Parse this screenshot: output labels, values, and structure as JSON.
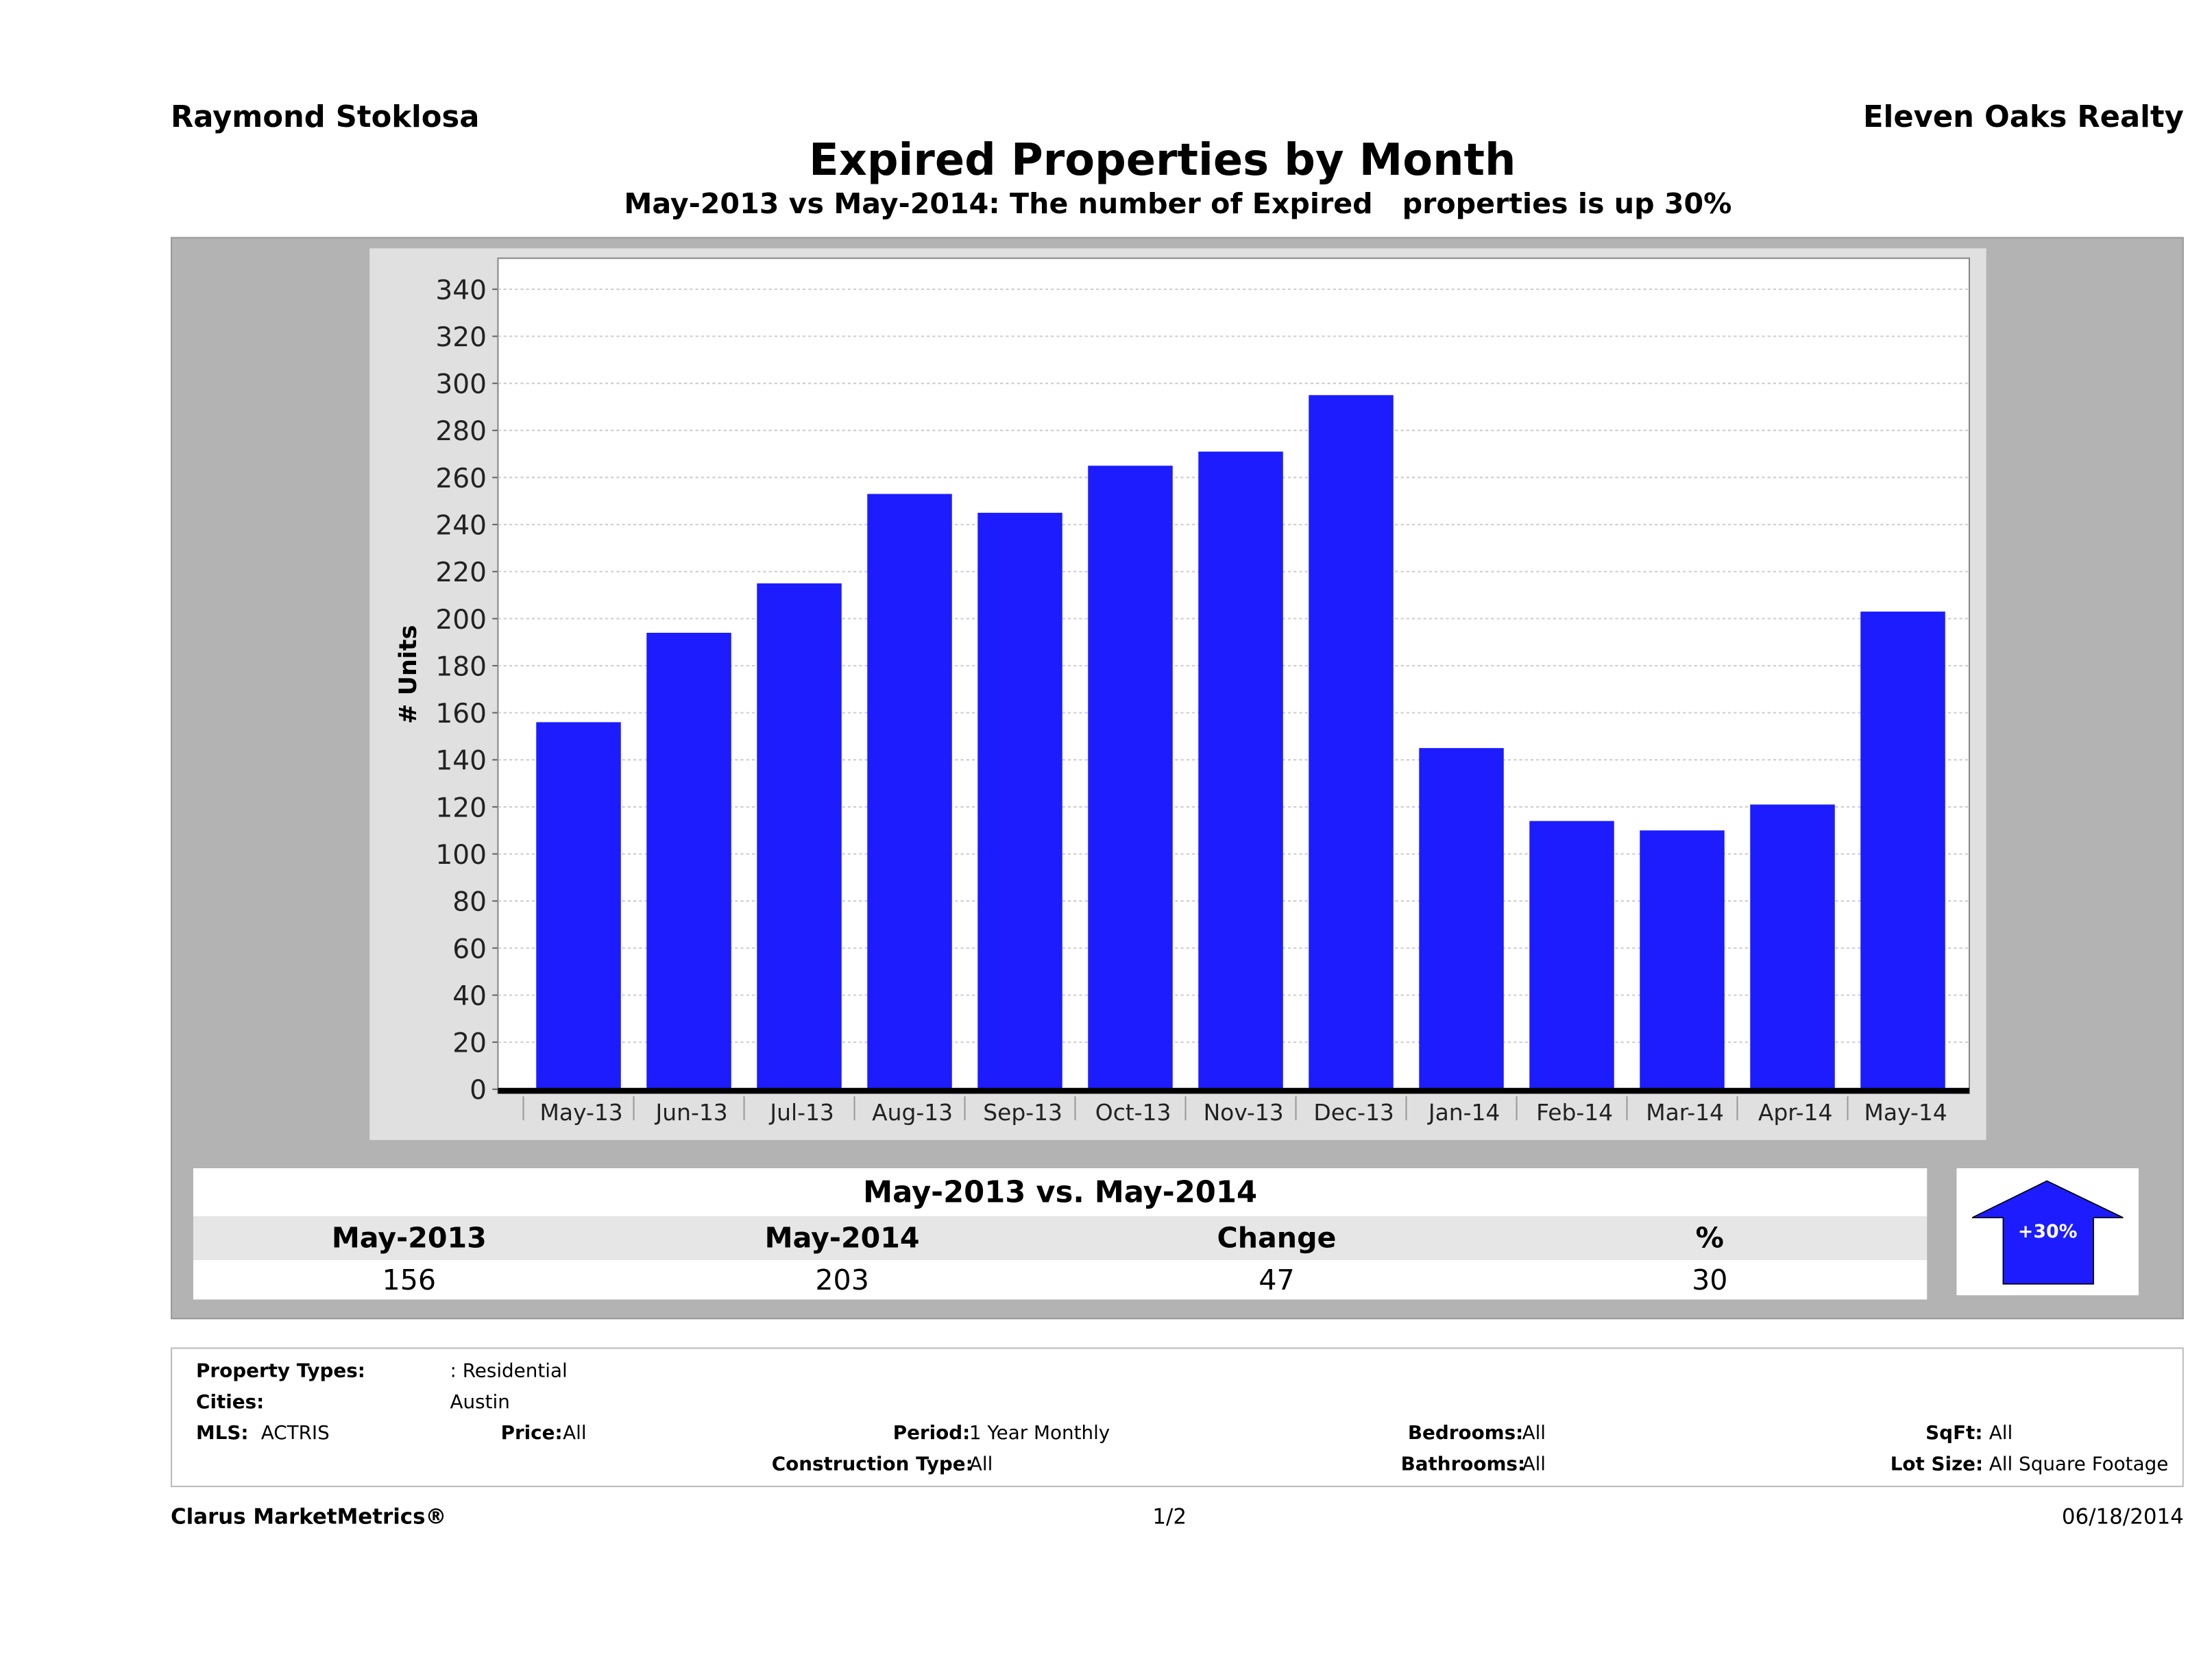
{
  "header": {
    "agent": "Raymond Stoklosa",
    "company": "Eleven Oaks Realty",
    "title": "Expired Properties by Month",
    "subtitle": "May-2013 vs May-2014: The number of Expired   properties is up 30%"
  },
  "chart_data": {
    "type": "bar",
    "categories": [
      "May-13",
      "Jun-13",
      "Jul-13",
      "Aug-13",
      "Sep-13",
      "Oct-13",
      "Nov-13",
      "Dec-13",
      "Jan-14",
      "Feb-14",
      "Mar-14",
      "Apr-14",
      "May-14"
    ],
    "values": [
      156,
      194,
      215,
      253,
      245,
      265,
      271,
      295,
      145,
      114,
      110,
      121,
      203
    ],
    "ylabel": "# Units",
    "xlabel": "",
    "ylim": [
      0,
      350
    ],
    "yticks": [
      0,
      20,
      40,
      60,
      80,
      100,
      120,
      140,
      160,
      180,
      200,
      220,
      240,
      260,
      280,
      300,
      320,
      340
    ],
    "grid": true,
    "bar_color": "#1c1cff"
  },
  "comparison": {
    "title": "May-2013 vs. May-2014",
    "headers": [
      "May-2013",
      "May-2014",
      "Change",
      "%"
    ],
    "values": [
      "156",
      "203",
      "47",
      "30"
    ],
    "badge": "+30%",
    "badge_color": "#1c1cff"
  },
  "filters": {
    "property_types_label": "Property Types:",
    "property_types": ": Residential",
    "cities_label": "Cities:",
    "cities": "Austin",
    "mls_label": "MLS:",
    "mls": "ACTRIS",
    "price_label": "Price:",
    "price": "All",
    "period_label": "Period:",
    "period": "1 Year Monthly",
    "construction_label": "Construction Type:",
    "construction": "All",
    "bedrooms_label": "Bedrooms:",
    "bedrooms": "All",
    "bathrooms_label": "Bathrooms:",
    "bathrooms": "All",
    "sqft_label": "SqFt:",
    "sqft": "All",
    "lot_label": "Lot Size:",
    "lot": "All Square Footage"
  },
  "footer": {
    "brand": "Clarus MarketMetrics®",
    "page": "1/2",
    "date": "06/18/2014"
  }
}
